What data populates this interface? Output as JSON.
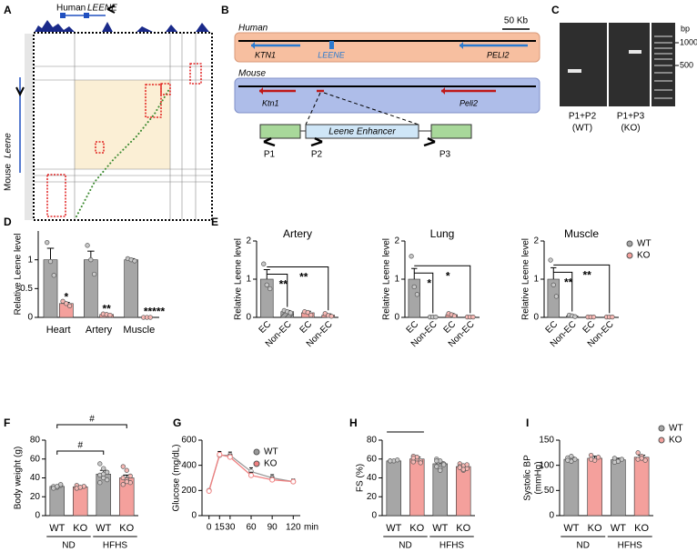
{
  "figure": {
    "panel_a": {
      "label": "A",
      "track_species": "Human",
      "track_gene": "LEENE",
      "axis_species": "Mouse",
      "axis_gene": "Leene"
    },
    "panel_b": {
      "label": "B",
      "scale": "50 Kb",
      "human": "Human",
      "human_genes": [
        "KTN1",
        "LEENE",
        "PELI2"
      ],
      "mouse": "Mouse",
      "mouse_genes": [
        "Ktn1",
        "Peli2"
      ],
      "enhancer": "Leene Enhancer",
      "primers": [
        "P1",
        "P2",
        "P3"
      ]
    },
    "panel_c": {
      "label": "C",
      "unit": "bp",
      "ladder": [
        "1000",
        "500"
      ],
      "lanes": [
        {
          "primers": "P1+P2",
          "genotype": "(WT)"
        },
        {
          "primers": "P1+P3",
          "genotype": "(KO)"
        }
      ]
    }
  },
  "chart_data": [
    {
      "panel": "D",
      "type": "bar",
      "ylabel": "Relative Leene level",
      "categories": [
        "Heart",
        "Artery",
        "Muscle"
      ],
      "ylim": [
        0,
        1.5
      ],
      "yticks": [
        0,
        0.5,
        1
      ],
      "series": [
        {
          "color": "#a6a6a6",
          "values": [
            1,
            1,
            1
          ],
          "errors": [
            0.2,
            0.15,
            0.02
          ],
          "points": [
            [
              1.3,
              0.97,
              0.73
            ],
            [
              1.25,
              1,
              0.75
            ],
            [
              1.02,
              1,
              0.98
            ]
          ]
        },
        {
          "color": "#f4a09c",
          "values": [
            0.24,
            0.05,
            0.005
          ],
          "errors": [
            0.02,
            0.01,
            0.002
          ],
          "points": [
            [
              0.28,
              0.24,
              0.2
            ],
            [
              0.06,
              0.05,
              0.04
            ],
            [
              0,
              0,
              0
            ]
          ]
        }
      ],
      "annotations": [
        "*",
        "**",
        "*****"
      ]
    },
    {
      "panel": "E",
      "type": "bar",
      "title": "Artery",
      "ylabel": "Relative Leene level",
      "categories": [
        "EC",
        "Non-EC",
        "EC",
        "Non-EC"
      ],
      "ylim": [
        0,
        2
      ],
      "yticks": [
        0,
        1,
        2
      ],
      "series": [
        {
          "color": "#a6a6a6",
          "values": [
            1,
            0.15,
            null,
            null
          ],
          "errors": [
            0.25,
            0.03,
            null,
            null
          ],
          "hatch": [
            false,
            true,
            false,
            false
          ],
          "points": [
            [
              1.4,
              0.85,
              0.75
            ],
            [
              0.18,
              0.15,
              0.12
            ],
            null,
            null
          ]
        },
        {
          "color": "#f4a09c",
          "values": [
            null,
            null,
            0.12,
            0.06
          ],
          "errors": [
            null,
            null,
            0.04,
            0.03
          ],
          "points": [
            null,
            null,
            [
              0.15,
              0.13,
              0.06
            ],
            [
              0.1,
              0.05,
              0.03
            ]
          ]
        }
      ],
      "annotations": [
        "**",
        "**"
      ]
    },
    {
      "type": "bar",
      "title": "Lung",
      "ylabel": "Relative Leene level",
      "categories": [
        "EC",
        "Non-EC",
        "EC",
        "Non-EC"
      ],
      "ylim": [
        0,
        2
      ],
      "yticks": [
        0,
        1,
        2
      ],
      "series": [
        {
          "color": "#a6a6a6",
          "values": [
            1,
            0.01,
            null,
            null
          ],
          "errors": [
            0.28,
            0.005,
            null,
            null
          ],
          "hatch": [
            false,
            true,
            false,
            false
          ],
          "points": [
            [
              1.6,
              0.8,
              0.6
            ],
            [
              0.01,
              0.01,
              0.01
            ],
            null,
            null
          ]
        },
        {
          "color": "#f4a09c",
          "values": [
            null,
            null,
            0.07,
            0.01
          ],
          "errors": [
            null,
            null,
            0.03,
            0.005
          ],
          "points": [
            null,
            null,
            [
              0.1,
              0.07,
              0.04
            ],
            [
              0.01,
              0.01,
              0.01
            ]
          ]
        }
      ],
      "annotations": [
        "*",
        "*"
      ]
    },
    {
      "type": "bar",
      "title": "Muscle",
      "ylabel": "Relative Leene level",
      "categories": [
        "EC",
        "Non-EC",
        "EC",
        "Non-EC"
      ],
      "ylim": [
        0,
        2
      ],
      "yticks": [
        0,
        1,
        2
      ],
      "legend": true,
      "series": [
        {
          "name": "WT",
          "color": "#a6a6a6",
          "values": [
            1,
            0.04,
            null,
            null
          ],
          "errors": [
            0.3,
            0.02,
            null,
            null
          ],
          "hatch": [
            false,
            true,
            false,
            false
          ],
          "points": [
            [
              1.5,
              0.85,
              0.55
            ],
            [
              0.06,
              0.04,
              0.02
            ],
            null,
            null
          ]
        },
        {
          "name": "KO",
          "color": "#f4a09c",
          "values": [
            null,
            null,
            0.01,
            0.01
          ],
          "errors": [
            null,
            null,
            0.005,
            0.005
          ],
          "points": [
            null,
            null,
            [
              0.01,
              0.01,
              0.01
            ],
            [
              0.01,
              0.01,
              0.01
            ]
          ]
        }
      ],
      "annotations": [
        "**",
        "**"
      ]
    },
    {
      "panel": "F",
      "type": "bar",
      "ylabel": "Body weight (g)",
      "categories": [
        "WT",
        "KO",
        "WT",
        "KO"
      ],
      "groups": [
        "ND",
        "HFHS"
      ],
      "ylim": [
        0,
        80
      ],
      "yticks": [
        0,
        20,
        40,
        60,
        80
      ],
      "series": [
        {
          "color": "#a6a6a6",
          "values": [
            31,
            null,
            44,
            null
          ],
          "errors": [
            1,
            null,
            4,
            null
          ],
          "points": [
            [
              30,
              31,
              32,
              31,
              30,
              33,
              29,
              31
            ],
            null,
            [
              55,
              50,
              46,
              43,
              40,
              38,
              35,
              44
            ],
            null
          ]
        },
        {
          "color": "#f4a09c",
          "values": [
            null,
            30.5,
            null,
            40
          ],
          "errors": [
            null,
            1,
            null,
            3
          ],
          "points": [
            null,
            [
              29,
              30,
              31,
              32,
              30,
              31,
              29,
              30
            ],
            null,
            [
              52,
              48,
              42,
              40,
              38,
              35,
              33,
              36
            ]
          ]
        }
      ],
      "annotations": [
        "#",
        "#"
      ]
    },
    {
      "panel": "G",
      "type": "line",
      "ylabel": "Glucose (mg/dL)",
      "xlabel": "min",
      "x": [
        0,
        15,
        30,
        60,
        90,
        120
      ],
      "xlim": [
        -10,
        130
      ],
      "xticks": [
        0,
        15,
        30,
        60,
        90,
        120
      ],
      "ylim": [
        0,
        600
      ],
      "yticks": [
        0,
        200,
        400,
        600
      ],
      "legend": true,
      "series": [
        {
          "name": "WT",
          "color": "#999999",
          "values": [
            200,
            480,
            480,
            350,
            300,
            270
          ],
          "errors": [
            10,
            20,
            25,
            30,
            25,
            20
          ]
        },
        {
          "name": "KO",
          "color": "#f08080",
          "values": [
            195,
            485,
            465,
            320,
            285,
            270
          ],
          "errors": [
            10,
            25,
            20,
            25,
            20,
            15
          ]
        }
      ]
    },
    {
      "panel": "H",
      "type": "bar",
      "ylabel": "FS (%)",
      "categories": [
        "WT",
        "KO",
        "WT",
        "KO"
      ],
      "groups": [
        "ND",
        "HFHS"
      ],
      "ylim": [
        0,
        80
      ],
      "yticks": [
        0,
        20,
        40,
        60,
        80
      ],
      "series": [
        {
          "color": "#a6a6a6",
          "values": [
            58,
            null,
            55,
            null
          ],
          "errors": [
            1,
            null,
            2,
            null
          ],
          "points": [
            [
              58,
              58,
              59,
              58
            ],
            null,
            [
              60,
              58,
              55,
              52,
              50,
              54,
              58,
              48
            ],
            null
          ]
        },
        {
          "color": "#f4a09c",
          "values": [
            null,
            60,
            null,
            52
          ],
          "errors": [
            null,
            2,
            null,
            1.5
          ],
          "points": [
            null,
            [
              63,
              60,
              58,
              57,
              62,
              56,
              61
            ],
            null,
            [
              55,
              53,
              50,
              52,
              48,
              54,
              51,
              49
            ]
          ]
        }
      ]
    },
    {
      "panel": "I",
      "type": "bar",
      "ylabel": [
        "Systolic BP",
        "(mmHg)"
      ],
      "categories": [
        "WT",
        "KO",
        "WT",
        "KO"
      ],
      "groups": [
        "ND",
        "HFHS"
      ],
      "ylim": [
        0,
        150
      ],
      "yticks": [
        0,
        50,
        100,
        150
      ],
      "legend": true,
      "series": [
        {
          "name": "WT",
          "color": "#a6a6a6",
          "values": [
            112,
            null,
            111,
            null
          ],
          "errors": [
            4,
            null,
            3,
            null
          ],
          "points": [
            [
              115,
              108,
              112,
              110,
              118
            ],
            null,
            [
              114,
              108,
              112,
              106
            ],
            null
          ]
        },
        {
          "name": "KO",
          "color": "#f4a09c",
          "values": [
            null,
            114,
            null,
            116
          ],
          "errors": [
            null,
            4,
            null,
            4
          ],
          "points": [
            null,
            [
              120,
              110,
              116,
              112
            ],
            null,
            [
              125,
              118,
              110,
              112,
              114
            ]
          ]
        }
      ]
    }
  ]
}
